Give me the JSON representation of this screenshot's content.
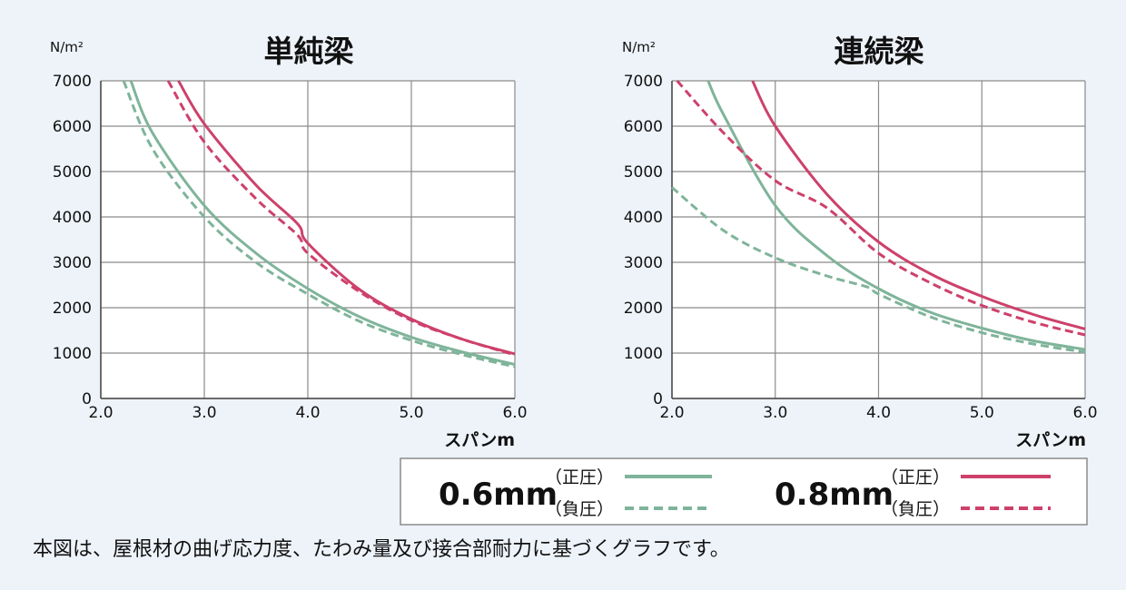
{
  "colors": {
    "green": "#7fb49a",
    "red": "#cd416b",
    "grid": "#8a8a8a",
    "background": "#eef3fa",
    "plot_background": "#ffffff"
  },
  "caption": "本図は、屋根材の曲げ応力度、たわみ量及び接合部耐力に基づくグラフです。",
  "legend": {
    "items": [
      {
        "gauge": "0.6mm",
        "positive_label": "（正圧）",
        "negative_label": "（負圧）",
        "color": "#7fb49a"
      },
      {
        "gauge": "0.8mm",
        "positive_label": "（正圧）",
        "negative_label": "（負圧）",
        "color": "#cd416b"
      }
    ]
  },
  "chart_data": [
    {
      "type": "line",
      "title": "単純梁",
      "ylabel": "N/m²",
      "xlabel": "スパンm",
      "xlim": [
        2.0,
        6.0
      ],
      "ylim": [
        0,
        7000
      ],
      "xticks": [
        "2.0",
        "3.0",
        "4.0",
        "5.0",
        "6.0"
      ],
      "yticks": [
        "0",
        "1000",
        "2000",
        "3000",
        "4000",
        "5000",
        "6000",
        "7000"
      ],
      "grid": true,
      "series": [
        {
          "gauge": "0.6mm",
          "load": "正圧",
          "color": "#7fb49a",
          "dashed": false,
          "points": [
            [
              2.29,
              7000
            ],
            [
              2.5,
              5850
            ],
            [
              3.0,
              4250
            ],
            [
              3.5,
              3200
            ],
            [
              4.0,
              2420
            ],
            [
              4.5,
              1800
            ],
            [
              5.0,
              1350
            ],
            [
              5.5,
              1020
            ],
            [
              6.0,
              750
            ]
          ]
        },
        {
          "gauge": "0.6mm",
          "load": "負圧",
          "color": "#7fb49a",
          "dashed": false,
          "dash": true,
          "points": [
            [
              2.22,
              7000
            ],
            [
              2.5,
              5500
            ],
            [
              3.0,
              4000
            ],
            [
              3.5,
              3000
            ],
            [
              4.0,
              2300
            ],
            [
              4.5,
              1700
            ],
            [
              5.0,
              1280
            ],
            [
              5.5,
              960
            ],
            [
              6.0,
              700
            ]
          ]
        },
        {
          "gauge": "0.8mm",
          "load": "正圧",
          "color": "#cd416b",
          "dashed": false,
          "points": [
            [
              2.75,
              7000
            ],
            [
              3.0,
              6050
            ],
            [
              3.5,
              4700
            ],
            [
              3.9,
              3850
            ],
            [
              4.0,
              3420
            ],
            [
              4.5,
              2400
            ],
            [
              5.0,
              1750
            ],
            [
              5.5,
              1300
            ],
            [
              6.0,
              980
            ]
          ]
        },
        {
          "gauge": "0.8mm",
          "load": "負圧",
          "color": "#cd416b",
          "dashed": true,
          "points": [
            [
              2.65,
              7000
            ],
            [
              3.0,
              5650
            ],
            [
              3.5,
              4400
            ],
            [
              3.9,
              3600
            ],
            [
              4.0,
              3200
            ],
            [
              4.5,
              2350
            ],
            [
              5.0,
              1720
            ],
            [
              5.5,
              1300
            ],
            [
              6.0,
              960
            ]
          ]
        }
      ]
    },
    {
      "type": "line",
      "title": "連続梁",
      "ylabel": "N/m²",
      "xlabel": "スパンm",
      "xlim": [
        2.0,
        6.0
      ],
      "ylim": [
        0,
        7000
      ],
      "xticks": [
        "2.0",
        "3.0",
        "4.0",
        "5.0",
        "6.0"
      ],
      "yticks": [
        "0",
        "1000",
        "2000",
        "3000",
        "4000",
        "5000",
        "6000",
        "7000"
      ],
      "grid": true,
      "series": [
        {
          "gauge": "0.6mm",
          "load": "正圧",
          "color": "#7fb49a",
          "dashed": false,
          "points": [
            [
              2.35,
              7000
            ],
            [
              2.5,
              6250
            ],
            [
              3.0,
              4250
            ],
            [
              3.5,
              3150
            ],
            [
              4.0,
              2420
            ],
            [
              4.5,
              1900
            ],
            [
              5.0,
              1550
            ],
            [
              5.5,
              1270
            ],
            [
              6.0,
              1080
            ]
          ]
        },
        {
          "gauge": "0.6mm",
          "load": "負圧",
          "color": "#7fb49a",
          "dashed": true,
          "points": [
            [
              2.0,
              4650
            ],
            [
              2.5,
              3700
            ],
            [
              3.0,
              3100
            ],
            [
              3.5,
              2700
            ],
            [
              3.9,
              2450
            ],
            [
              4.0,
              2300
            ],
            [
              4.5,
              1800
            ],
            [
              5.0,
              1450
            ],
            [
              5.5,
              1200
            ],
            [
              6.0,
              1020
            ]
          ]
        },
        {
          "gauge": "0.8mm",
          "load": "正圧",
          "color": "#cd416b",
          "dashed": false,
          "points": [
            [
              2.78,
              7000
            ],
            [
              3.0,
              6000
            ],
            [
              3.5,
              4500
            ],
            [
              4.0,
              3450
            ],
            [
              4.5,
              2750
            ],
            [
              5.0,
              2250
            ],
            [
              5.5,
              1850
            ],
            [
              6.0,
              1530
            ]
          ]
        },
        {
          "gauge": "0.8mm",
          "load": "負圧",
          "color": "#cd416b",
          "dashed": true,
          "points": [
            [
              2.05,
              7000
            ],
            [
              2.5,
              5850
            ],
            [
              3.0,
              4800
            ],
            [
              3.5,
              4200
            ],
            [
              4.0,
              3200
            ],
            [
              4.5,
              2550
            ],
            [
              5.0,
              2050
            ],
            [
              5.5,
              1680
            ],
            [
              6.0,
              1400
            ]
          ]
        }
      ]
    }
  ]
}
